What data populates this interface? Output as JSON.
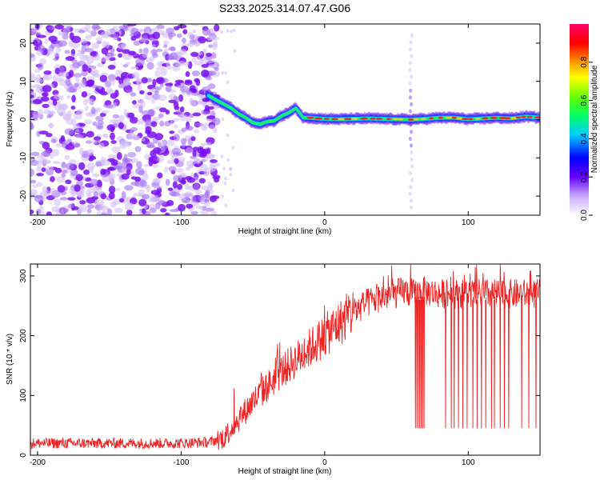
{
  "title": "S233.2025.314.07.47.G06",
  "chart_data": [
    {
      "type": "heatmap",
      "name": "spectrogram",
      "xlabel": "Height of straight line (km)",
      "ylabel": "Frequency (Hz)",
      "xlim": [
        -205,
        150
      ],
      "ylim": [
        -25,
        25
      ],
      "xticks": [
        -200,
        -100,
        0,
        100
      ],
      "yticks": [
        -20,
        -10,
        0,
        10,
        20
      ],
      "colorbar": {
        "label": "Normalized spectral amplitude",
        "range": [
          0,
          1
        ],
        "ticks": [
          0.0,
          0.2,
          0.4,
          0.6,
          0.8
        ]
      },
      "frequency_track": {
        "x": [
          -82,
          -75,
          -70,
          -65,
          -60,
          -55,
          -50,
          -45,
          -40,
          -35,
          -30,
          -25,
          -20,
          -15,
          -10,
          -5,
          0,
          10,
          20,
          30,
          40,
          50,
          60,
          70,
          80,
          90,
          100,
          110,
          120,
          130,
          140,
          150
        ],
        "y": [
          6.5,
          5,
          4,
          3,
          1.5,
          0.5,
          -0.8,
          -1.2,
          -0.5,
          -0.3,
          1,
          1.8,
          3,
          0.5,
          0.5,
          0.3,
          0.2,
          0.1,
          0.2,
          0.3,
          0.2,
          0.1,
          0,
          0.2,
          0.5,
          0.5,
          0.1,
          0.3,
          0.5,
          0.3,
          0.8,
          0.5
        ]
      },
      "noise_region_x": [
        -205,
        -75
      ]
    },
    {
      "type": "line",
      "name": "snr",
      "xlabel": "Height of straight line (km)",
      "ylabel": "SNR (10 * v/v)",
      "xlim": [
        -205,
        150
      ],
      "ylim": [
        0,
        320
      ],
      "xticks": [
        -200,
        -100,
        0,
        100
      ],
      "yticks": [
        0,
        100,
        200,
        300
      ],
      "envelope": {
        "x": [
          -205,
          -150,
          -100,
          -80,
          -70,
          -60,
          -50,
          -40,
          -30,
          -20,
          -10,
          0,
          10,
          20,
          30,
          40,
          50,
          55,
          62,
          64,
          68,
          80,
          100,
          120,
          140,
          150
        ],
        "y": [
          20,
          20,
          20,
          22,
          30,
          60,
          90,
          115,
          140,
          160,
          180,
          200,
          220,
          240,
          255,
          265,
          270,
          275,
          270,
          270,
          275,
          270,
          270,
          270,
          270,
          270
        ]
      },
      "dropouts_x": [
        63,
        64,
        65,
        66,
        67,
        68,
        69,
        84,
        88,
        90,
        93,
        96,
        99,
        103,
        106,
        109,
        112,
        116,
        118,
        122,
        125,
        128,
        137,
        142,
        147
      ],
      "dropout_value": 45
    }
  ]
}
